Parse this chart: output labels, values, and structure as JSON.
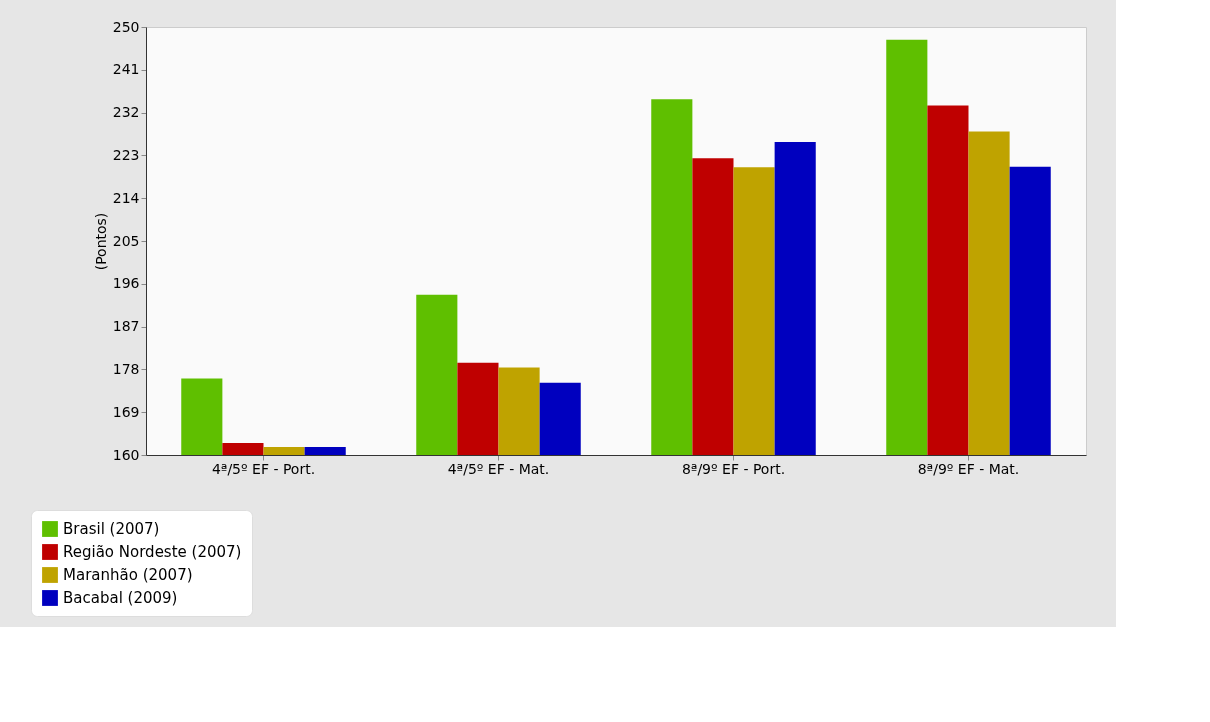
{
  "chart_data": {
    "type": "bar",
    "ylabel": "(Pontos)",
    "categories": [
      "4ª/5º EF - Port.",
      "4ª/5º EF - Mat.",
      "8ª/9º EF - Port.",
      "8ª/9º EF - Mat."
    ],
    "series": [
      {
        "name": "Brasil (2007)",
        "color": "#5fbf00",
        "values": [
          176.1,
          193.7,
          234.8,
          247.3
        ]
      },
      {
        "name": "Região Nordeste (2007)",
        "color": "#bf0000",
        "values": [
          162.5,
          179.4,
          222.4,
          233.5
        ]
      },
      {
        "name": "Maranhão (2007)",
        "color": "#bfa300",
        "values": [
          161.7,
          178.4,
          220.5,
          228.0
        ]
      },
      {
        "name": "Bacabal (2009)",
        "color": "#0000bf",
        "values": [
          161.7,
          175.2,
          225.8,
          220.6
        ]
      }
    ],
    "ylim": [
      160,
      250
    ],
    "yticks": [
      160,
      169,
      178,
      187,
      196,
      205,
      214,
      223,
      232,
      241,
      250
    ],
    "grid": false,
    "legend": "bottom left"
  }
}
